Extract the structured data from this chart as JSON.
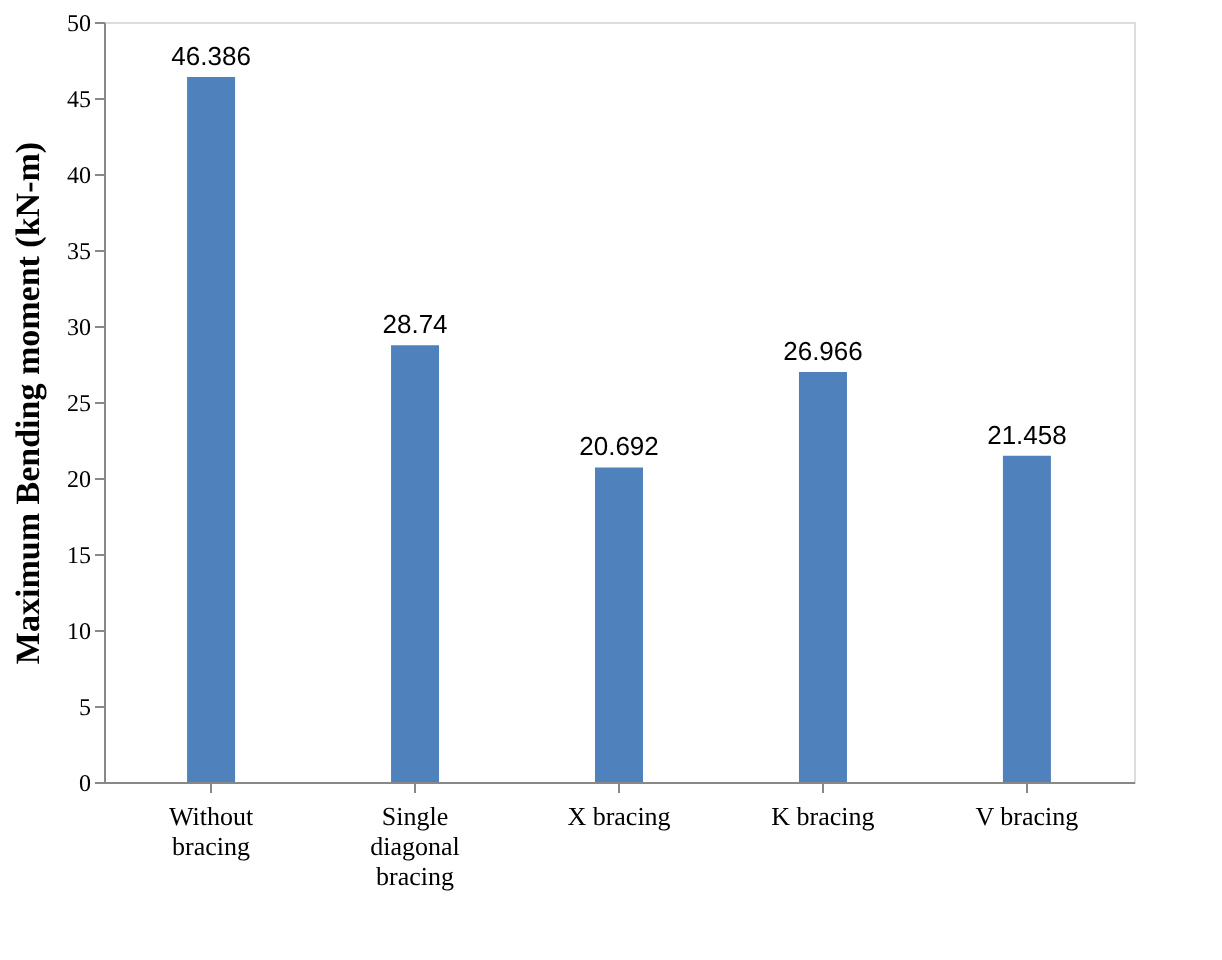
{
  "chart_data": {
    "type": "bar",
    "ylabel": "Maximum Bending moment (kN-m)",
    "categories": [
      "Without bracing",
      "Single diagonal bracing",
      "X bracing",
      "K bracing",
      "V bracing"
    ],
    "values": [
      46.386,
      28.74,
      20.692,
      26.966,
      21.458
    ],
    "color": "#4f81bd",
    "ylim": [
      0,
      50
    ],
    "yticks": [
      0,
      5,
      10,
      15,
      20,
      25,
      30,
      35,
      40,
      45,
      50
    ],
    "data_labels": true,
    "grid": false
  }
}
